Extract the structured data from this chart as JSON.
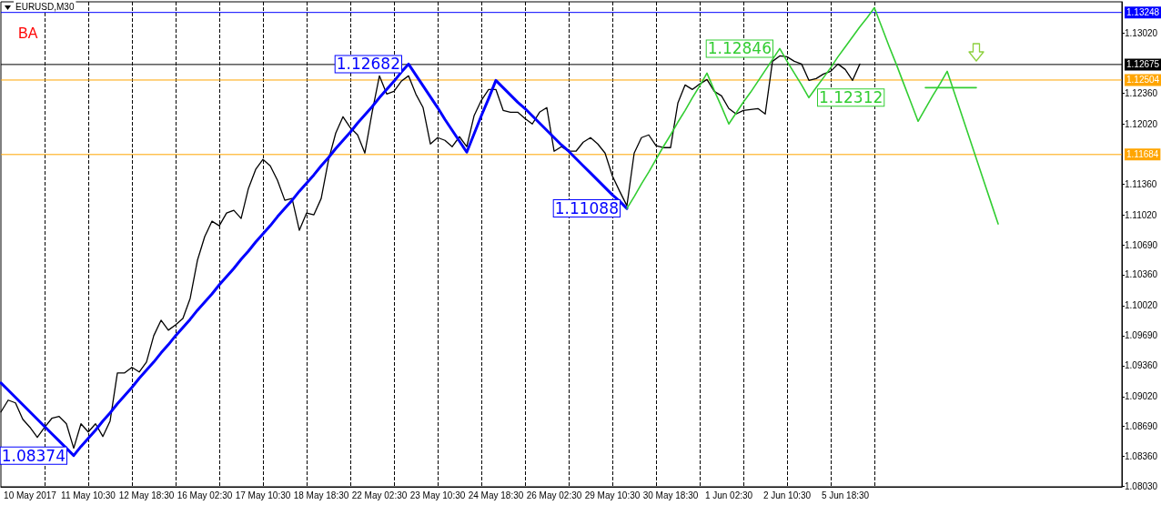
{
  "chart_data": {
    "type": "line",
    "title": "EURUSD,M30",
    "marker": "none",
    "grid": "x",
    "annotations": [
      "BA",
      "1.08374",
      "1.12682",
      "1.11088",
      "1.12846",
      "1.12312"
    ],
    "categories": [
      null,
      null,
      null,
      null,
      "10 May 2017",
      null,
      null,
      null,
      null,
      null,
      null,
      null,
      "11 May 10:30",
      null,
      null,
      null,
      null,
      null,
      null,
      null,
      "12 May 18:30",
      null,
      null,
      null,
      null,
      null,
      null,
      null,
      "16 May 02:30",
      null,
      null,
      null,
      null,
      null,
      null,
      null,
      "17 May 10:30",
      null,
      null,
      null,
      null,
      null,
      null,
      null,
      "18 May 18:30",
      null,
      null,
      null,
      null,
      null,
      null,
      null,
      "22 May 02:30",
      null,
      null,
      null,
      null,
      null,
      null,
      null,
      "23 May 10:30",
      null,
      null,
      null,
      null,
      null,
      null,
      null,
      "24 May 18:30",
      null,
      null,
      null,
      null,
      null,
      null,
      null,
      "26 May 02:30",
      null,
      null,
      null,
      null,
      null,
      null,
      null,
      "29 May 10:30",
      null,
      null,
      null,
      null,
      null,
      null,
      null,
      "30 May 18:30",
      null,
      null,
      null,
      null,
      null,
      null,
      null,
      "1 Jun 02:30",
      null,
      null,
      null,
      null,
      null,
      null,
      null,
      "2 Jun 10:30",
      null,
      null,
      null,
      null,
      null,
      null,
      null,
      "5 Jun 18:30",
      null,
      null,
      null,
      null,
      null,
      null,
      null,
      null,
      null,
      null,
      null,
      null,
      null,
      null,
      null,
      null,
      null,
      null,
      null,
      null,
      null,
      null,
      null,
      null,
      null,
      null,
      null,
      null,
      null,
      null,
      null,
      null,
      null,
      null,
      null,
      null,
      null,
      null
    ],
    "ylim": [
      1.08026,
      1.13365
    ],
    "yticks": [
      {
        "value": 1.0803,
        "label": "1.08030"
      },
      {
        "value": 1.0836,
        "label": "1.08360"
      },
      {
        "value": 1.0869,
        "label": "1.08690"
      },
      {
        "value": 1.0902,
        "label": "1.09020"
      },
      {
        "value": 1.0936,
        "label": "1.09360"
      },
      {
        "value": 1.0969,
        "label": "1.09690"
      },
      {
        "value": 1.1002,
        "label": "1.10020"
      },
      {
        "value": 1.1036,
        "label": "1.10360"
      },
      {
        "value": 1.1069,
        "label": "1.10690"
      },
      {
        "value": 1.1102,
        "label": "1.11020"
      },
      {
        "value": 1.1136,
        "label": "1.11360"
      },
      {
        "value": 1.1202,
        "label": "1.12020"
      },
      {
        "value": 1.1236,
        "label": "1.12360"
      },
      {
        "value": 1.1302,
        "label": "1.13020"
      }
    ],
    "ref_lines": [
      {
        "axis": "y",
        "value": 1.13248,
        "label": "1.13248",
        "color": "#0000ff"
      },
      {
        "axis": "y",
        "value": 1.12675,
        "label": "1.12675",
        "color": "#000000"
      },
      {
        "axis": "y",
        "value": 1.12504,
        "label": "1.12504",
        "color": "#ffa500"
      },
      {
        "axis": "y",
        "value": 1.11684,
        "label": "1.11684",
        "color": "#ffa500"
      }
    ],
    "series": [
      {
        "color": "#000000",
        "values": [
          1.0885,
          1.0898,
          1.0895,
          1.0877,
          1.0868,
          1.0857,
          1.0868,
          1.0878,
          1.088,
          1.0872,
          1.0845,
          1.0872,
          1.0863,
          1.0872,
          1.0858,
          1.0875,
          1.0928,
          1.0928,
          1.0934,
          1.0929,
          1.094,
          1.0969,
          1.0986,
          1.0975,
          1.0981,
          1.0988,
          1.101,
          1.1052,
          1.1078,
          1.1095,
          1.109,
          1.1104,
          1.1107,
          1.1098,
          1.1131,
          1.1152,
          1.1163,
          1.1156,
          1.114,
          1.1118,
          1.112,
          1.1085,
          1.1104,
          1.1102,
          1.112,
          1.1162,
          1.1192,
          1.121,
          1.1198,
          1.119,
          1.117,
          1.1215,
          1.1255,
          1.1235,
          1.1238,
          1.1249,
          1.1255,
          1.1235,
          1.122,
          1.118,
          1.1187,
          1.1184,
          1.1177,
          1.1188,
          1.1177,
          1.1211,
          1.1228,
          1.124,
          1.124,
          1.1217,
          1.1215,
          1.1215,
          1.1208,
          1.1202,
          1.1215,
          1.122,
          1.1172,
          1.1177,
          1.1172,
          1.1172,
          1.1182,
          1.1187,
          1.118,
          1.117,
          1.1145,
          1.1128,
          1.1112,
          1.117,
          1.1187,
          1.119,
          1.1178,
          1.1176,
          1.1176,
          1.1225,
          1.1245,
          1.124,
          1.1246,
          1.1251,
          1.1238,
          1.1233,
          1.1219,
          1.1213,
          1.1217,
          1.1218,
          1.1219,
          1.1213,
          1.1271,
          1.1277,
          1.1276,
          1.1271,
          1.1268,
          1.125,
          1.1252,
          1.1257,
          1.126,
          1.1268,
          1.1262,
          1.125,
          1.1268,
          null,
          null,
          null,
          null,
          null,
          null,
          null,
          null,
          null,
          null,
          null,
          null,
          null,
          null,
          null,
          null,
          null,
          null,
          null,
          null,
          null,
          null,
          null,
          null,
          null,
          null,
          null,
          null,
          null,
          null,
          null,
          null,
          null,
          null,
          null,
          null
        ]
      },
      {
        "color": "#0000ff",
        "values": [
          1.0917,
          1.0909,
          1.0901,
          1.0893,
          1.0885,
          1.0877,
          1.0869,
          1.0861,
          1.0853,
          1.0845,
          1.0837,
          1.0847,
          1.0856,
          1.0865,
          1.0875,
          1.0884,
          1.0894,
          1.0903,
          1.0912,
          1.0922,
          1.0931,
          1.094,
          1.095,
          1.0959,
          1.0969,
          1.0978,
          1.0987,
          1.0997,
          1.1006,
          1.1015,
          1.1025,
          1.1034,
          1.1043,
          1.1053,
          1.1062,
          1.1072,
          1.1081,
          1.109,
          1.11,
          1.1109,
          1.1118,
          1.1128,
          1.1137,
          1.1146,
          1.1156,
          1.1165,
          1.1175,
          1.1184,
          1.1193,
          1.1203,
          1.1212,
          1.1221,
          1.1231,
          1.124,
          1.1249,
          1.1259,
          1.1268,
          1.1256,
          1.1244,
          1.1232,
          1.122,
          1.1207,
          1.1195,
          1.1183,
          1.1171,
          1.1191,
          1.1211,
          1.123,
          1.125,
          1.1242,
          1.1234,
          1.1226,
          1.1219,
          1.1211,
          1.1203,
          1.1195,
          1.1187,
          1.1179,
          1.1172,
          1.1164,
          1.1156,
          1.1148,
          1.114,
          1.1132,
          1.1124,
          1.1117,
          1.1109,
          null,
          null,
          null,
          null,
          null,
          null,
          null,
          null,
          null,
          null,
          null,
          null,
          null,
          null,
          null,
          null,
          null,
          null,
          null,
          null,
          null,
          null,
          null,
          null,
          null,
          null,
          null,
          null,
          null,
          null,
          null,
          null,
          null,
          null,
          null,
          null,
          null,
          null,
          null,
          null,
          null,
          null,
          null,
          null,
          null,
          null,
          null,
          null,
          null,
          null,
          null,
          null,
          null,
          null,
          null,
          null,
          null,
          null,
          null,
          null,
          null,
          null,
          null,
          null,
          null,
          null,
          null,
          null
        ]
      },
      {
        "color": "#32cd32",
        "values": [
          null,
          null,
          null,
          null,
          null,
          null,
          null,
          null,
          null,
          null,
          null,
          null,
          null,
          null,
          null,
          null,
          null,
          null,
          null,
          null,
          null,
          null,
          null,
          null,
          null,
          null,
          null,
          null,
          null,
          null,
          null,
          null,
          null,
          null,
          null,
          null,
          null,
          null,
          null,
          null,
          null,
          null,
          null,
          null,
          null,
          null,
          null,
          null,
          null,
          null,
          null,
          null,
          null,
          null,
          null,
          null,
          null,
          null,
          null,
          null,
          null,
          null,
          null,
          null,
          null,
          null,
          null,
          null,
          null,
          null,
          null,
          null,
          null,
          null,
          null,
          null,
          null,
          null,
          null,
          null,
          null,
          null,
          null,
          null,
          null,
          null,
          1.1109,
          1.1122,
          1.1136,
          1.1149,
          1.1163,
          1.1177,
          1.119,
          1.1204,
          1.1217,
          1.1231,
          1.1244,
          1.1258,
          1.1239,
          1.1221,
          1.1202,
          1.1214,
          1.1226,
          1.1237,
          1.1249,
          1.1261,
          1.1273,
          1.1285,
          1.1271,
          1.1258,
          1.1245,
          1.1231,
          1.1242,
          1.1253,
          1.1264,
          1.1276,
          1.1287,
          1.1298,
          1.1309,
          1.1319,
          1.133,
          1.1309,
          1.1288,
          1.1268,
          1.1247,
          1.1226,
          1.1205,
          1.1219,
          1.1233,
          1.1246,
          1.126,
          1.1236,
          1.1212,
          1.1188,
          1.1164,
          1.114,
          1.1116,
          1.1092,
          null,
          null,
          null,
          null,
          null,
          null,
          null,
          null,
          null,
          null,
          null,
          null,
          null,
          null,
          null,
          null,
          null
        ]
      },
      {
        "color": "#32cd32",
        "values": [
          null,
          null,
          null,
          null,
          null,
          null,
          null,
          null,
          null,
          null,
          null,
          null,
          null,
          null,
          null,
          null,
          null,
          null,
          null,
          null,
          null,
          null,
          null,
          null,
          null,
          null,
          null,
          null,
          null,
          null,
          null,
          null,
          null,
          null,
          null,
          null,
          null,
          null,
          null,
          null,
          null,
          null,
          null,
          null,
          null,
          null,
          null,
          null,
          null,
          null,
          null,
          null,
          null,
          null,
          null,
          null,
          null,
          null,
          null,
          null,
          null,
          null,
          null,
          null,
          null,
          null,
          null,
          null,
          null,
          null,
          null,
          null,
          null,
          null,
          null,
          null,
          null,
          null,
          null,
          null,
          null,
          null,
          null,
          null,
          null,
          null,
          null,
          null,
          null,
          null,
          null,
          null,
          null,
          null,
          null,
          null,
          null,
          null,
          null,
          null,
          null,
          null,
          null,
          null,
          null,
          null,
          null,
          null,
          null,
          null,
          null,
          null,
          null,
          null,
          null,
          null,
          null,
          null,
          null,
          null,
          null,
          null,
          null,
          null,
          null,
          null,
          null,
          1.1242,
          1.1242,
          1.1242,
          1.1242,
          1.1242,
          1.1242,
          1.1242,
          1.1242,
          null,
          null,
          null,
          null,
          null,
          null,
          null,
          null,
          null,
          null,
          null,
          null,
          null,
          null,
          null,
          null,
          null,
          null,
          null,
          null
        ]
      }
    ]
  }
}
